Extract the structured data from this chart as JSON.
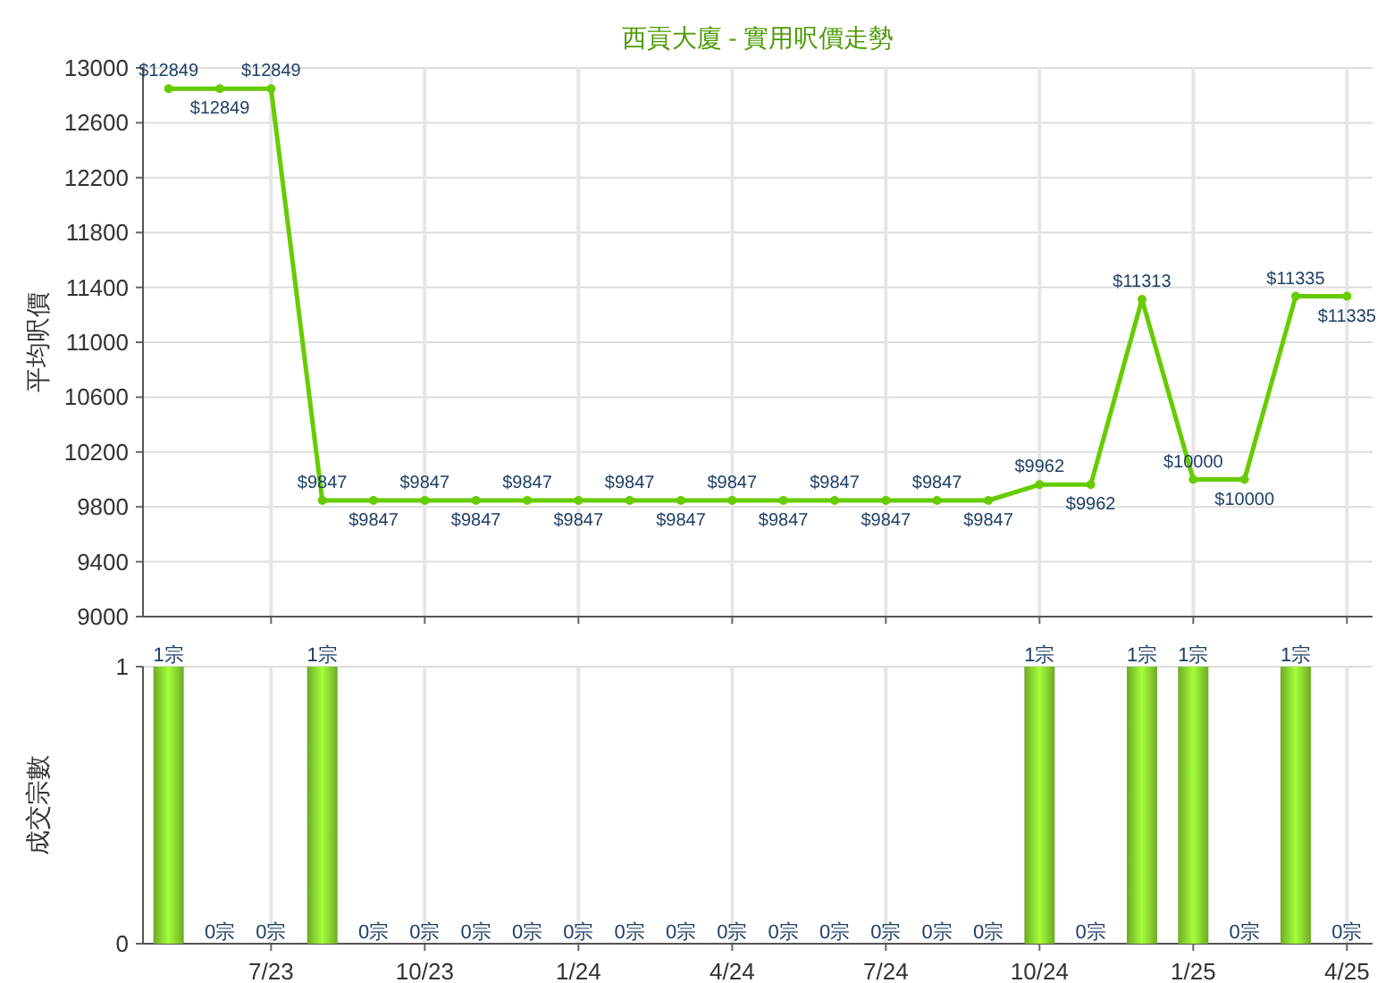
{
  "chart_data": [
    {
      "type": "line",
      "title": "西貢大廈 - 實用呎價走勢",
      "ylabel": "平均呎價",
      "categories": [
        null,
        null,
        null,
        null,
        null,
        null,
        null,
        null,
        null,
        null,
        null,
        null,
        null,
        null,
        null,
        null,
        null,
        null,
        null,
        null,
        null,
        null,
        null,
        null
      ],
      "series": [
        {
          "color": "#66cc00",
          "values": [
            12849,
            12849,
            12849,
            9847,
            9847,
            9847,
            9847,
            9847,
            9847,
            9847,
            9847,
            9847,
            9847,
            9847,
            9847,
            9847,
            9847,
            9962,
            9962,
            11313,
            10000,
            10000,
            11335,
            11335
          ],
          "value_labels": [
            "$12849",
            "$12849",
            "$12849",
            "$9847",
            "$9847",
            "$9847",
            "$9847",
            "$9847",
            "$9847",
            "$9847",
            "$9847",
            "$9847",
            "$9847",
            "$9847",
            "$9847",
            "$9847",
            "$9847",
            "$9962",
            "$9962",
            "$11313",
            "$10000",
            "$10000",
            "$11335",
            "$11335"
          ]
        }
      ],
      "ylim": [
        9000,
        13000
      ],
      "yticks": [
        9000,
        9400,
        9800,
        10200,
        10600,
        11000,
        11400,
        11800,
        12200,
        12600,
        13000
      ],
      "grid": true,
      "marker": "circle",
      "tick_labels": "y"
    },
    {
      "type": "bar",
      "ylabel": "成交宗數",
      "categories": [
        null,
        null,
        "7/23",
        null,
        null,
        "10/23",
        null,
        null,
        "1/24",
        null,
        null,
        "4/24",
        null,
        null,
        "7/24",
        null,
        null,
        "10/24",
        null,
        null,
        "1/25",
        null,
        null,
        "4/25"
      ],
      "series": [
        {
          "color": "#7cc52c",
          "values": [
            1,
            0,
            0,
            1,
            0,
            0,
            0,
            0,
            0,
            0,
            0,
            0,
            0,
            0,
            0,
            0,
            0,
            1,
            0,
            1,
            1,
            0,
            1,
            0
          ],
          "value_labels": [
            "1宗",
            "0宗",
            "0宗",
            "1宗",
            "0宗",
            "0宗",
            "0宗",
            "0宗",
            "0宗",
            "0宗",
            "0宗",
            "0宗",
            "0宗",
            "0宗",
            "0宗",
            "0宗",
            "0宗",
            "1宗",
            "0宗",
            "1宗",
            "1宗",
            "0宗",
            "1宗",
            "0宗"
          ]
        }
      ],
      "ylim": [
        0,
        1
      ],
      "yticks": [
        0,
        1
      ],
      "grid": true
    }
  ]
}
